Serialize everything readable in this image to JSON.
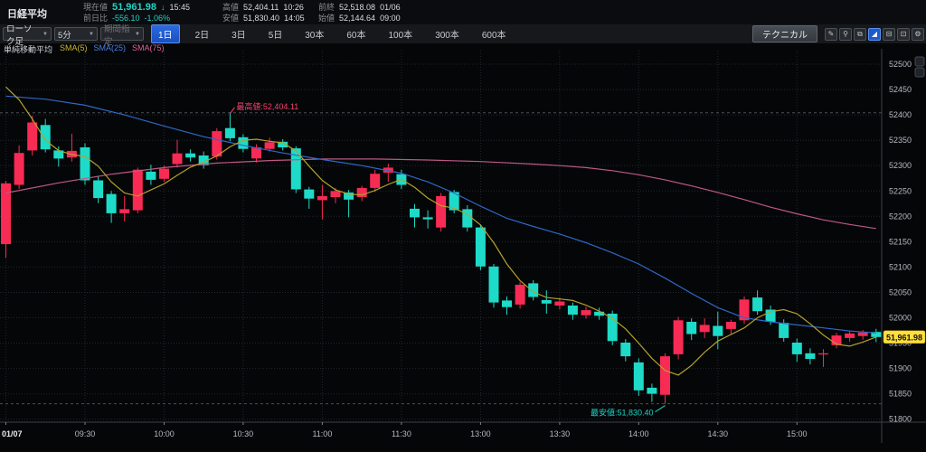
{
  "topbar": {
    "instrument": "日経平均",
    "current": {
      "label": "現在値",
      "value": "51,961.98",
      "arrow": "↓",
      "time": "15:45"
    },
    "change": {
      "label": "前日比",
      "value": "-556.10",
      "pct": "-1.06%"
    },
    "high": {
      "label": "高値",
      "value": "52,404.11",
      "time": "10:26"
    },
    "low": {
      "label": "安値",
      "value": "51,830.40",
      "time": "14:05"
    },
    "prev_close": {
      "label": "前終",
      "value": "52,518.08",
      "date": "01/06"
    },
    "open": {
      "label": "始値",
      "value": "52,144.64",
      "time": "09:00"
    }
  },
  "toolbar": {
    "caret": "▼",
    "chart_type": {
      "value": "ローソク足"
    },
    "interval": {
      "value": "5分"
    },
    "range_select": {
      "value": "期間指定"
    },
    "periods": [
      {
        "label": "1日",
        "active": true
      },
      {
        "label": "2日",
        "active": false
      },
      {
        "label": "3日",
        "active": false
      },
      {
        "label": "5日",
        "active": false
      },
      {
        "label": "30本",
        "active": false
      },
      {
        "label": "60本",
        "active": false
      },
      {
        "label": "100本",
        "active": false
      },
      {
        "label": "300本",
        "active": false
      },
      {
        "label": "600本",
        "active": false
      }
    ],
    "technical_label": "テクニカル",
    "icons": [
      {
        "name": "draw-tool-icon",
        "glyph": "✎",
        "active": false
      },
      {
        "name": "zoom-tool-icon",
        "glyph": "⚲",
        "active": false
      },
      {
        "name": "popout-icon",
        "glyph": "⧉",
        "active": false
      },
      {
        "name": "area-chart-icon",
        "glyph": "◢",
        "active": true
      },
      {
        "name": "save-icon",
        "glyph": "⊟",
        "active": false
      },
      {
        "name": "folder-icon",
        "glyph": "⊡",
        "active": false
      },
      {
        "name": "settings-gear-icon",
        "glyph": "⚙",
        "active": false
      }
    ]
  },
  "legend": {
    "title": "単純移動平均",
    "items": [
      {
        "label": "SMA(5)",
        "color": "#c9b636"
      },
      {
        "label": "SMA(25)",
        "color": "#4a80e8"
      },
      {
        "label": "SMA(75)",
        "color": "#e0639a"
      }
    ]
  },
  "colors": {
    "up": "#f72b54",
    "down": "#1ddbc8",
    "sma5": "#b3a22b",
    "sma25": "#2e68c8",
    "sma75": "#bd5886",
    "grid": "#22262b",
    "axis_line": "#3c4147",
    "axis_text": "#b6bbc1",
    "hilo_dash": "#4b5056",
    "tag_bg": "#ffdf3c",
    "tag_text": "#101010",
    "anno_high": "#f4426b",
    "anno_low": "#1fd4c5"
  },
  "chart_data": {
    "type": "candlestick",
    "interval": "5分",
    "y_ticks": [
      52500,
      52450,
      52400,
      52350,
      52300,
      52250,
      52200,
      52150,
      52100,
      52050,
      52000,
      51950,
      51900,
      51850,
      51800
    ],
    "y_axis": {
      "min": 51790,
      "max": 52520
    },
    "x_ticks": [
      {
        "label": "01/07",
        "idx": 0,
        "bold": true
      },
      {
        "label": "09:30",
        "idx": 6,
        "bold": false
      },
      {
        "label": "10:00",
        "idx": 12,
        "bold": false
      },
      {
        "label": "10:30",
        "idx": 18,
        "bold": false
      },
      {
        "label": "11:00",
        "idx": 24,
        "bold": false
      },
      {
        "label": "11:30",
        "idx": 30,
        "bold": false
      },
      {
        "label": "13:00",
        "idx": 36,
        "bold": false
      },
      {
        "label": "13:30",
        "idx": 42,
        "bold": false
      },
      {
        "label": "14:00",
        "idx": 48,
        "bold": false
      },
      {
        "label": "14:30",
        "idx": 54,
        "bold": false
      },
      {
        "label": "15:00",
        "idx": 60,
        "bold": false
      }
    ],
    "candles": [
      [
        "09:00",
        52145,
        52270,
        52118,
        52265
      ],
      [
        "09:05",
        52262,
        52340,
        52254,
        52325
      ],
      [
        "09:10",
        52330,
        52398,
        52320,
        52385
      ],
      [
        "09:15",
        52380,
        52392,
        52326,
        52332
      ],
      [
        "09:20",
        52330,
        52338,
        52298,
        52314
      ],
      [
        "09:25",
        52316,
        52363,
        52308,
        52329
      ],
      [
        "09:30",
        52336,
        52344,
        52262,
        52271
      ],
      [
        "09:35",
        52271,
        52280,
        52226,
        52236
      ],
      [
        "09:40",
        52244,
        52250,
        52187,
        52206
      ],
      [
        "09:45",
        52206,
        52240,
        52190,
        52214
      ],
      [
        "09:50",
        52212,
        52296,
        52206,
        52292
      ],
      [
        "09:55",
        52288,
        52302,
        52262,
        52272
      ],
      [
        "10:00",
        52274,
        52300,
        52268,
        52294
      ],
      [
        "10:05",
        52303,
        52351,
        52296,
        52324
      ],
      [
        "10:10",
        52324,
        52332,
        52308,
        52316
      ],
      [
        "10:15",
        52320,
        52328,
        52294,
        52301
      ],
      [
        "10:20",
        52318,
        52374,
        52312,
        52368
      ],
      [
        "10:25",
        52374,
        52404.11,
        52348,
        52354
      ],
      [
        "10:30",
        52356,
        52362,
        52326,
        52333
      ],
      [
        "10:35",
        52314,
        52342,
        52306,
        52336
      ],
      [
        "10:40",
        52333,
        52355,
        52328,
        52346
      ],
      [
        "10:45",
        52347,
        52352,
        52330,
        52336
      ],
      [
        "10:50",
        52334,
        52338,
        52246,
        52253
      ],
      [
        "10:55",
        52253,
        52258,
        52215,
        52235
      ],
      [
        "11:00",
        52232,
        52262,
        52194,
        52240
      ],
      [
        "11:05",
        52238,
        52256,
        52226,
        52250
      ],
      [
        "11:10",
        52247,
        52252,
        52198,
        52233
      ],
      [
        "11:15",
        52238,
        52260,
        52230,
        52256
      ],
      [
        "11:20",
        52256,
        52292,
        52248,
        52284
      ],
      [
        "11:25",
        52286,
        52304,
        52268,
        52296
      ],
      [
        "12:30",
        52283,
        52292,
        52254,
        52262
      ],
      [
        "12:35",
        52215,
        52224,
        52178,
        52198
      ],
      [
        "12:40",
        52198,
        52212,
        52176,
        52194
      ],
      [
        "12:45",
        52178,
        52246,
        52170,
        52240
      ],
      [
        "12:50",
        52248,
        52252,
        52206,
        52212
      ],
      [
        "12:55",
        52214,
        52222,
        52170,
        52178
      ],
      [
        "13:00",
        52178,
        52184,
        52094,
        52101
      ],
      [
        "13:05",
        52101,
        52106,
        52020,
        52030
      ],
      [
        "13:10",
        52034,
        52042,
        52006,
        52021
      ],
      [
        "13:15",
        52026,
        52070,
        52018,
        52065
      ],
      [
        "13:20",
        52068,
        52074,
        52034,
        52041
      ],
      [
        "13:25",
        52035,
        52054,
        52008,
        52028
      ],
      [
        "13:30",
        52024,
        52040,
        52016,
        52032
      ],
      [
        "13:35",
        52024,
        52030,
        51996,
        52006
      ],
      [
        "13:40",
        52005,
        52022,
        51998,
        52015
      ],
      [
        "13:45",
        52012,
        52020,
        51996,
        52004
      ],
      [
        "13:50",
        52008,
        52014,
        51946,
        51954
      ],
      [
        "13:55",
        51951,
        51958,
        51914,
        51924
      ],
      [
        "14:00",
        51912,
        51920,
        51846,
        51857
      ],
      [
        "14:05",
        51862,
        51870,
        51834,
        51850
      ],
      [
        "14:10",
        51848,
        51930,
        51830.4,
        51924
      ],
      [
        "14:15",
        51928,
        52002,
        51918,
        51995
      ],
      [
        "14:20",
        51992,
        51999,
        51956,
        51968
      ],
      [
        "14:25",
        51972,
        51999,
        51960,
        51986
      ],
      [
        "14:30",
        51984,
        52012,
        51938,
        51964
      ],
      [
        "14:35",
        51978,
        51996,
        51968,
        51992
      ],
      [
        "14:40",
        51995,
        52042,
        51988,
        52036
      ],
      [
        "14:45",
        52040,
        52054,
        52006,
        52013
      ],
      [
        "14:50",
        52016,
        52024,
        51986,
        51992
      ],
      [
        "14:55",
        51990,
        51997,
        51953,
        51960
      ],
      [
        "15:00",
        51951,
        51959,
        51913,
        51928
      ],
      [
        "15:05",
        51930,
        51940,
        51908,
        51919
      ],
      [
        "15:10",
        51929,
        51938,
        51903,
        51930
      ],
      [
        "15:15",
        51946,
        51970,
        51940,
        51965
      ],
      [
        "15:20",
        51960,
        51974,
        51953,
        51969
      ],
      [
        "15:25",
        51964,
        51976,
        51957,
        51971
      ],
      [
        "15:30",
        51972,
        51978,
        51952,
        51961.98
      ]
    ],
    "sma5": [
      [
        0,
        52455
      ],
      [
        1,
        52430
      ],
      [
        2,
        52392
      ],
      [
        3,
        52350
      ],
      [
        4,
        52330
      ],
      [
        5,
        52322
      ],
      [
        6,
        52318
      ],
      [
        7,
        52299
      ],
      [
        8,
        52268
      ],
      [
        9,
        52246
      ],
      [
        10,
        52240
      ],
      [
        11,
        52252
      ],
      [
        12,
        52264
      ],
      [
        13,
        52281
      ],
      [
        14,
        52297
      ],
      [
        15,
        52307
      ],
      [
        16,
        52319
      ],
      [
        17,
        52337
      ],
      [
        18,
        52350
      ],
      [
        19,
        52352
      ],
      [
        20,
        52348
      ],
      [
        21,
        52345
      ],
      [
        22,
        52329
      ],
      [
        23,
        52299
      ],
      [
        24,
        52271
      ],
      [
        25,
        52252
      ],
      [
        26,
        52244
      ],
      [
        27,
        52242
      ],
      [
        28,
        52251
      ],
      [
        29,
        52263
      ],
      [
        30,
        52273
      ],
      [
        31,
        52257
      ],
      [
        32,
        52236
      ],
      [
        33,
        52221
      ],
      [
        34,
        52216
      ],
      [
        35,
        52204
      ],
      [
        36,
        52183
      ],
      [
        37,
        52148
      ],
      [
        38,
        52106
      ],
      [
        39,
        52073
      ],
      [
        40,
        52051
      ],
      [
        41,
        52040
      ],
      [
        42,
        52037
      ],
      [
        43,
        52034
      ],
      [
        44,
        52025
      ],
      [
        45,
        52013
      ],
      [
        46,
        51999
      ],
      [
        47,
        51978
      ],
      [
        48,
        51950
      ],
      [
        49,
        51920
      ],
      [
        50,
        51896
      ],
      [
        51,
        51887
      ],
      [
        52,
        51906
      ],
      [
        53,
        51932
      ],
      [
        54,
        51954
      ],
      [
        55,
        51967
      ],
      [
        56,
        51980
      ],
      [
        57,
        52000
      ],
      [
        58,
        52012
      ],
      [
        59,
        52016
      ],
      [
        60,
        52008
      ],
      [
        61,
        51988
      ],
      [
        62,
        51966
      ],
      [
        63,
        51948
      ],
      [
        64,
        51944
      ],
      [
        65,
        51952
      ],
      [
        66,
        51962
      ]
    ],
    "sma25": [
      [
        0,
        52437
      ],
      [
        3,
        52431
      ],
      [
        6,
        52419
      ],
      [
        9,
        52400
      ],
      [
        12,
        52378
      ],
      [
        15,
        52357
      ],
      [
        18,
        52340
      ],
      [
        21,
        52325
      ],
      [
        24,
        52312
      ],
      [
        27,
        52300
      ],
      [
        30,
        52285
      ],
      [
        32,
        52268
      ],
      [
        34,
        52246
      ],
      [
        36,
        52220
      ],
      [
        38,
        52196
      ],
      [
        40,
        52180
      ],
      [
        42,
        52165
      ],
      [
        44,
        52148
      ],
      [
        46,
        52128
      ],
      [
        48,
        52106
      ],
      [
        50,
        52078
      ],
      [
        52,
        52048
      ],
      [
        54,
        52020
      ],
      [
        56,
        52000
      ],
      [
        58,
        51992
      ],
      [
        60,
        51986
      ],
      [
        62,
        51980
      ],
      [
        64,
        51974
      ],
      [
        66,
        51970
      ]
    ],
    "sma75": [
      [
        0,
        52246
      ],
      [
        4,
        52266
      ],
      [
        8,
        52283
      ],
      [
        12,
        52296
      ],
      [
        16,
        52305
      ],
      [
        20,
        52310
      ],
      [
        24,
        52313
      ],
      [
        28,
        52313
      ],
      [
        32,
        52311
      ],
      [
        36,
        52308
      ],
      [
        40,
        52303
      ],
      [
        42,
        52300
      ],
      [
        44,
        52296
      ],
      [
        46,
        52290
      ],
      [
        48,
        52282
      ],
      [
        50,
        52272
      ],
      [
        52,
        52260
      ],
      [
        54,
        52247
      ],
      [
        56,
        52233
      ],
      [
        58,
        52218
      ],
      [
        60,
        52205
      ],
      [
        62,
        52193
      ],
      [
        64,
        52184
      ],
      [
        66,
        52176
      ]
    ],
    "annotations": {
      "high": {
        "label": "最高値:52,404.11",
        "price": 52404.11,
        "idx": 17
      },
      "low": {
        "label": "最安値:51,830.40",
        "price": 51830.4,
        "idx": 50
      }
    },
    "last_price": 51961.98,
    "last_price_label": "51,961.98"
  }
}
